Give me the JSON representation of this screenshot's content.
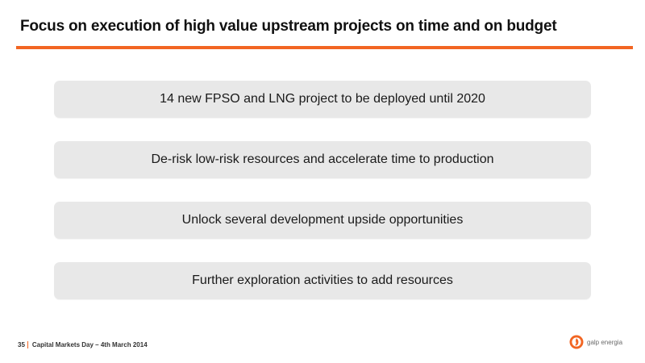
{
  "title": "Focus on execution of high value upstream projects on time and on budget",
  "items": [
    "14 new FPSO and LNG project to be deployed until 2020",
    "De-risk low-risk resources and accelerate time to production",
    "Unlock several development upside opportunities",
    "Further exploration activities to add resources"
  ],
  "footer": {
    "page_number": "35",
    "event": "Capital Markets Day – 4th March 2014"
  },
  "logo": {
    "text": "galp energia",
    "icon": "galp-flame-logo-icon"
  },
  "colors": {
    "accent": "#f26522",
    "box_fill": "#e8e8e8",
    "text": "#1a1a1a"
  }
}
